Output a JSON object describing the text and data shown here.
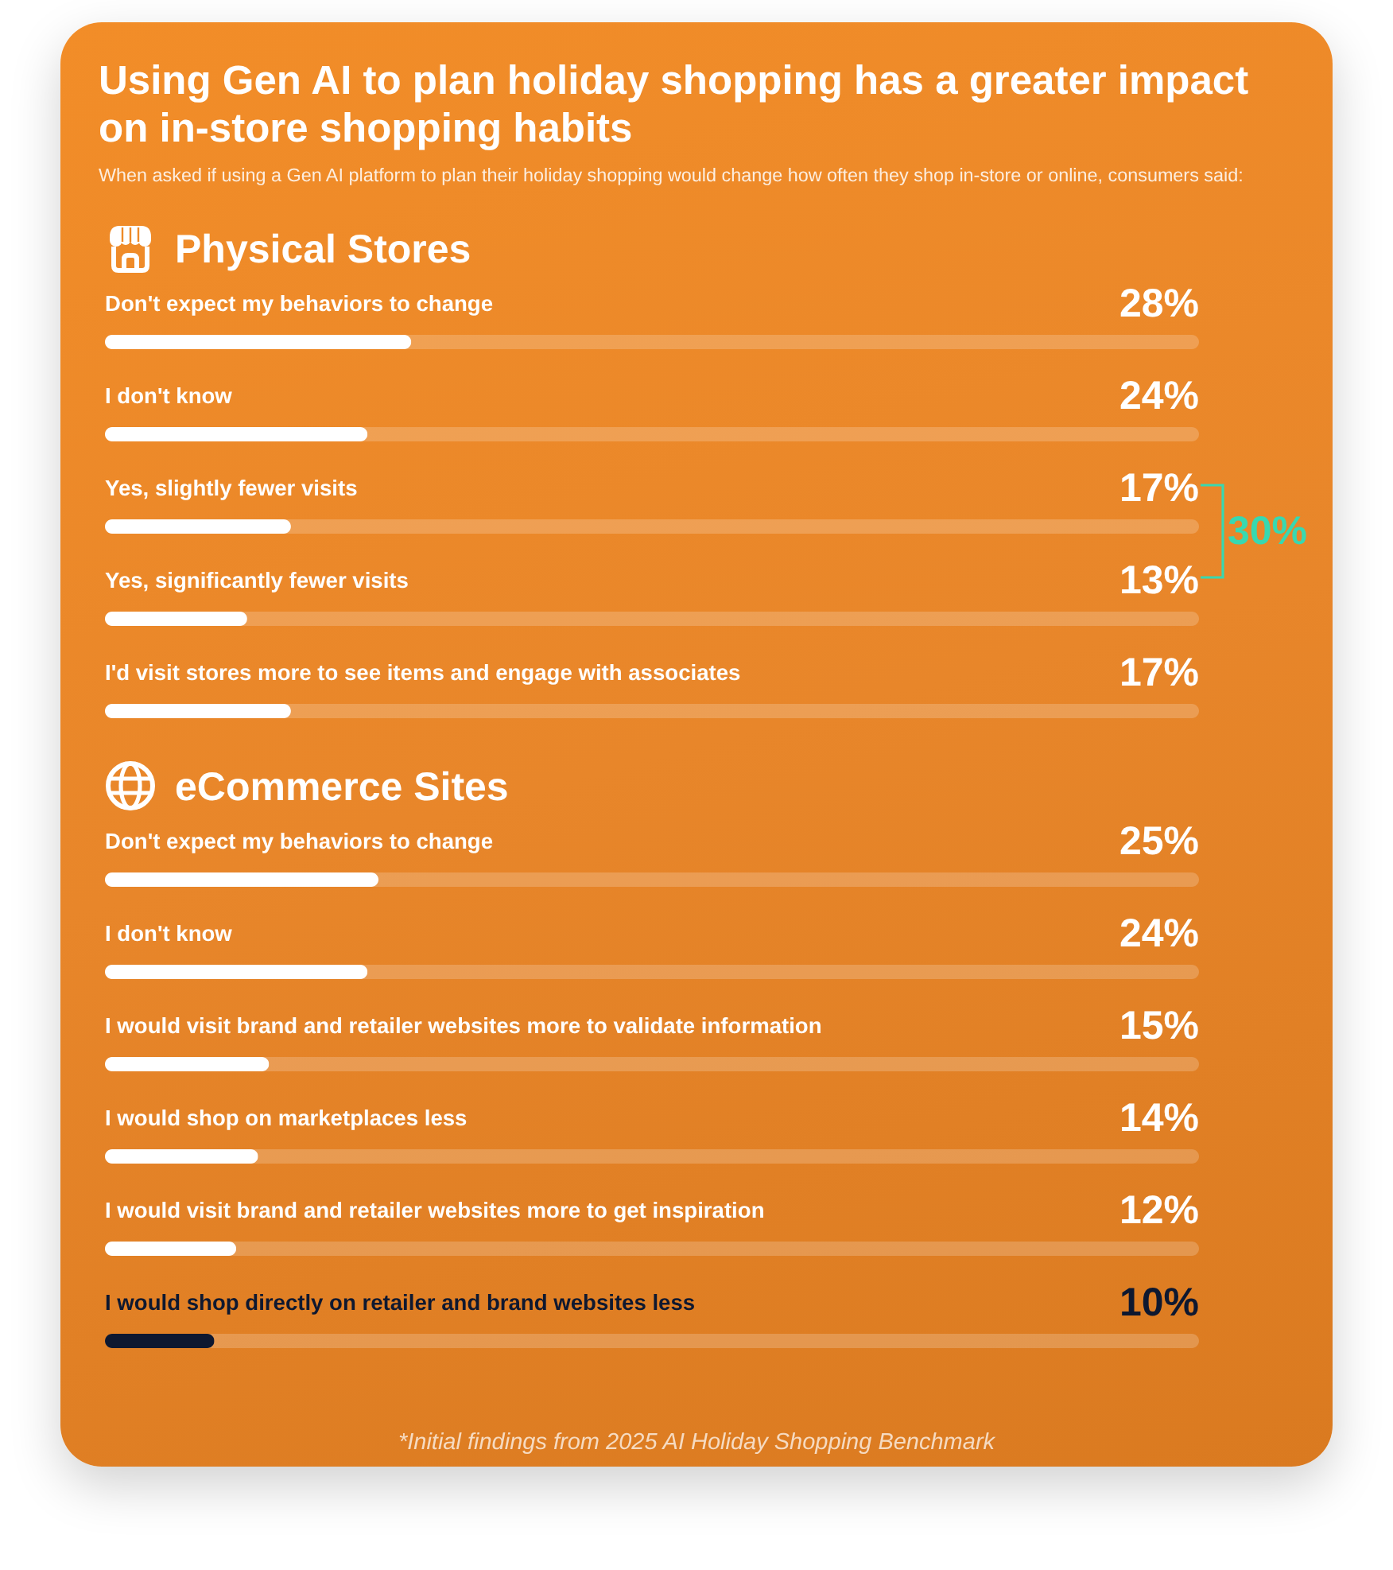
{
  "chart_data": [
    {
      "type": "other",
      "title": "Using Gen AI to plan holiday shopping has a greater impact on in-store shopping habits",
      "subtitle": "When asked if using a Gen AI platform to plan their holiday shopping would change how often they shop in-store or online, consumers said:"
    },
    {
      "type": "bar",
      "title": "Physical Stores",
      "orientation": "horizontal",
      "categories": [
        "Don't expect my behaviors to change",
        "I don't know",
        "Yes, slightly fewer visits",
        "Yes, significantly fewer visits",
        "I'd visit stores more to see items and engage with associates"
      ],
      "values": [
        28,
        24,
        17,
        13,
        17
      ],
      "value_labels": [
        "28%",
        "24%",
        "17%",
        "13%",
        "17%"
      ],
      "colors": [
        "#ffffff",
        "#ffffff",
        "#ffffff",
        "#ffffff",
        "#ffffff"
      ],
      "xlim": [
        0,
        100
      ],
      "annotations": [
        "30%"
      ]
    },
    {
      "type": "bar",
      "title": "eCommerce Sites",
      "orientation": "horizontal",
      "categories": [
        "Don't expect my behaviors to change",
        "I don't know",
        "I would visit brand and retailer websites more to validate information",
        "I would shop on marketplaces less",
        "I would visit brand and retailer websites more to get inspiration",
        "I would shop directly on retailer and brand websites less"
      ],
      "values": [
        25,
        24,
        15,
        14,
        12,
        10
      ],
      "value_labels": [
        "25%",
        "24%",
        "15%",
        "14%",
        "12%",
        "10%"
      ],
      "colors": [
        "#ffffff",
        "#ffffff",
        "#ffffff",
        "#ffffff",
        "#ffffff",
        "#0e1830"
      ],
      "xlim": [
        0,
        100
      ]
    },
    {
      "type": "other",
      "annotations": [
        "*Initial findings from 2025 AI Holiday Shopping Benchmark"
      ]
    }
  ]
}
